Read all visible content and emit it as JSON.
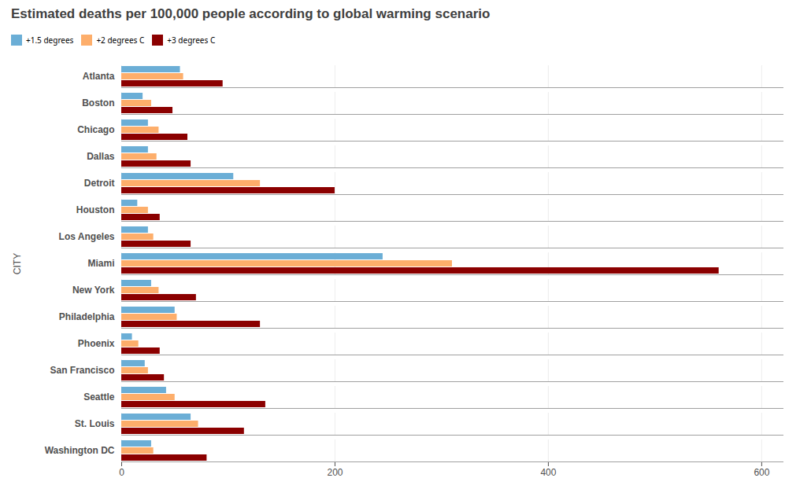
{
  "chart_data": {
    "type": "bar",
    "orientation": "horizontal",
    "title": "Estimated deaths per 100,000 people according to global warming scenario",
    "ylabel": "CITY",
    "categories": [
      "Atlanta",
      "Boston",
      "Chicago",
      "Dallas",
      "Detroit",
      "Houston",
      "Los Angeles",
      "Miami",
      "New York",
      "Philadelphia",
      "Phoenix",
      "San Francisco",
      "Seattle",
      "St. Louis",
      "Washington DC"
    ],
    "series": [
      {
        "name": "+1.5 degrees",
        "color": "#6baed6",
        "values": [
          55,
          20,
          25,
          25,
          105,
          15,
          25,
          245,
          28,
          50,
          10,
          22,
          42,
          65,
          28
        ]
      },
      {
        "name": "+2 degrees C",
        "color": "#fdae6b",
        "values": [
          58,
          28,
          35,
          33,
          130,
          25,
          30,
          310,
          35,
          52,
          16,
          25,
          50,
          72,
          30
        ]
      },
      {
        "name": "+3 degrees C",
        "color": "#8b0000",
        "values": [
          95,
          48,
          62,
          65,
          200,
          36,
          65,
          560,
          70,
          130,
          36,
          40,
          135,
          115,
          80
        ]
      }
    ],
    "xlim": [
      0,
      620
    ],
    "xticks": [
      0,
      200,
      400,
      600
    ],
    "grid": true,
    "legend": "top"
  }
}
